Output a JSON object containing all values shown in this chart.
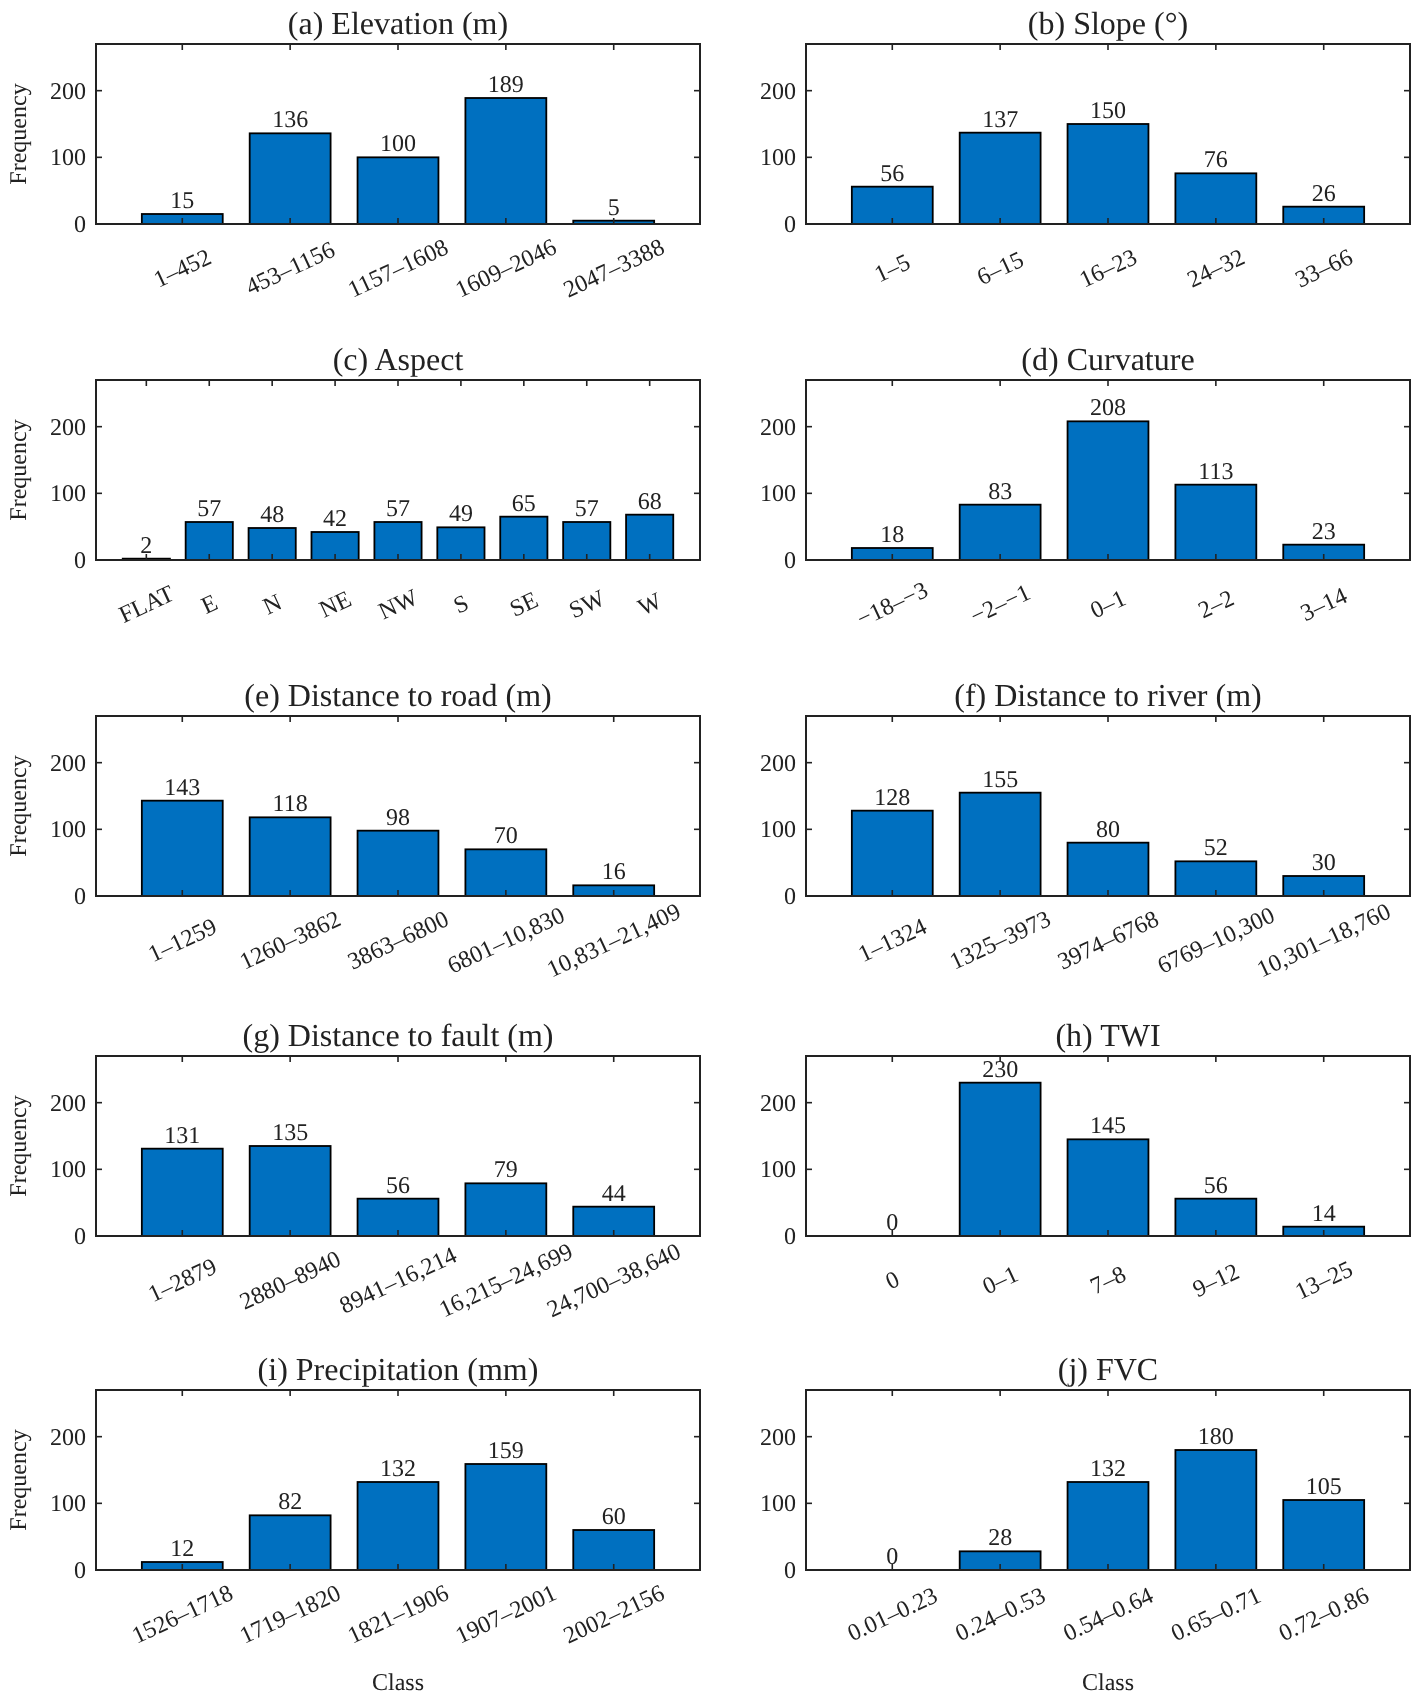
{
  "chart_data": [
    {
      "type": "bar",
      "title": "(a) Elevation (m)",
      "ylabel": "Frequency",
      "categories": [
        "1–452",
        "453–1156",
        "1157–1608",
        "1609–2046",
        "2047–3388"
      ],
      "values": [
        15,
        136,
        100,
        189,
        5
      ],
      "color": "#0070c0",
      "ylim": [
        0,
        270
      ],
      "yticks": [
        0,
        100,
        200
      ],
      "data_labels": true
    },
    {
      "type": "bar",
      "title": "(b) Slope (°)",
      "categories": [
        "1–5",
        "6–15",
        "16–23",
        "24–32",
        "33–66"
      ],
      "values": [
        56,
        137,
        150,
        76,
        26
      ],
      "color": "#0070c0",
      "ylim": [
        0,
        270
      ],
      "yticks": [
        0,
        100,
        200
      ],
      "data_labels": true
    },
    {
      "type": "bar",
      "title": "(c) Aspect",
      "ylabel": "Frequency",
      "categories": [
        "FLAT",
        "E",
        "N",
        "NE",
        "NW",
        "S",
        "SE",
        "SW",
        "W"
      ],
      "values": [
        2,
        57,
        48,
        42,
        57,
        49,
        65,
        57,
        68
      ],
      "color": "#0070c0",
      "ylim": [
        0,
        270
      ],
      "yticks": [
        0,
        100,
        200
      ],
      "data_labels": true
    },
    {
      "type": "bar",
      "title": "(d) Curvature",
      "categories": [
        "−18–−3",
        "−2–−1",
        "0–1",
        "2–2",
        "3–14"
      ],
      "values": [
        18,
        83,
        208,
        113,
        23
      ],
      "color": "#0070c0",
      "ylim": [
        0,
        270
      ],
      "yticks": [
        0,
        100,
        200
      ],
      "data_labels": true
    },
    {
      "type": "bar",
      "title": "(e) Distance to road (m)",
      "ylabel": "Frequency",
      "categories": [
        "1–1259",
        "1260–3862",
        "3863–6800",
        "6801–10,830",
        "10,831–21,409"
      ],
      "values": [
        143,
        118,
        98,
        70,
        16
      ],
      "color": "#0070c0",
      "ylim": [
        0,
        270
      ],
      "yticks": [
        0,
        100,
        200
      ],
      "data_labels": true
    },
    {
      "type": "bar",
      "title": "(f) Distance to river (m)",
      "categories": [
        "1–1324",
        "1325–3973",
        "3974–6768",
        "6769–10,300",
        "10,301–18,760"
      ],
      "values": [
        128,
        155,
        80,
        52,
        30
      ],
      "color": "#0070c0",
      "ylim": [
        0,
        270
      ],
      "yticks": [
        0,
        100,
        200
      ],
      "data_labels": true
    },
    {
      "type": "bar",
      "title": "(g) Distance to fault (m)",
      "ylabel": "Frequency",
      "categories": [
        "1–2879",
        "2880–8940",
        "8941–16,214",
        "16,215–24,699",
        "24,700–38,640"
      ],
      "values": [
        131,
        135,
        56,
        79,
        44
      ],
      "color": "#0070c0",
      "ylim": [
        0,
        270
      ],
      "yticks": [
        0,
        100,
        200
      ],
      "data_labels": true
    },
    {
      "type": "bar",
      "title": "(h) TWI",
      "categories": [
        "0",
        "0–1",
        "7–8",
        "9–12",
        "13–25"
      ],
      "values": [
        0,
        230,
        145,
        56,
        14
      ],
      "color": "#0070c0",
      "ylim": [
        0,
        270
      ],
      "yticks": [
        0,
        100,
        200
      ],
      "data_labels": true
    },
    {
      "type": "bar",
      "title": "(i) Precipitation (mm)",
      "ylabel": "Frequency",
      "xlabel": "Class",
      "categories": [
        "1526–1718",
        "1719–1820",
        "1821–1906",
        "1907–2001",
        "2002–2156"
      ],
      "values": [
        12,
        82,
        132,
        159,
        60
      ],
      "color": "#0070c0",
      "ylim": [
        0,
        270
      ],
      "yticks": [
        0,
        100,
        200
      ],
      "data_labels": true
    },
    {
      "type": "bar",
      "title": "(j) FVC",
      "xlabel": "Class",
      "categories": [
        "0.01–0.23",
        "0.24–0.53",
        "0.54–0.64",
        "0.65–0.71",
        "0.72–0.86"
      ],
      "values": [
        0,
        28,
        132,
        180,
        105
      ],
      "color": "#0070c0",
      "ylim": [
        0,
        270
      ],
      "yticks": [
        0,
        100,
        200
      ],
      "data_labels": true
    }
  ]
}
